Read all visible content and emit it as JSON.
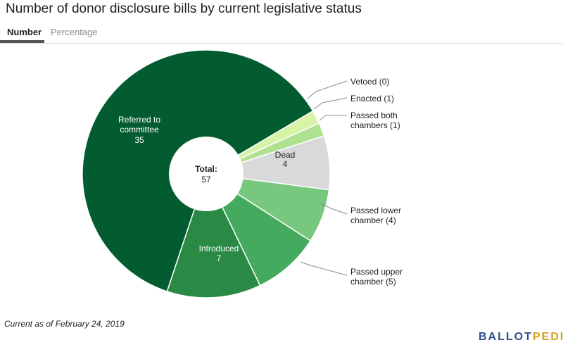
{
  "title": "Number of donor disclosure bills by current legislative status",
  "tabs": [
    {
      "label": "Number",
      "active": true
    },
    {
      "label": "Percentage",
      "active": false
    }
  ],
  "footnote": "Current as of February 24, 2019",
  "logo": {
    "part1": "BALLOT",
    "part2": "PEDIA"
  },
  "chart_data": {
    "type": "pie",
    "variant": "donut",
    "center_label": "Total:",
    "center_value": "57",
    "total": 57,
    "slices": [
      {
        "label": "Vetoed (0)",
        "name": "Vetoed",
        "value": 0,
        "color": "#d8f2a6",
        "label_position": "outside"
      },
      {
        "label": "Enacted (1)",
        "name": "Enacted",
        "value": 1,
        "color": "#d8f2a6",
        "label_position": "outside"
      },
      {
        "label": "Passed both chambers (1)",
        "name": "Passed both chambers",
        "value": 1,
        "color": "#aee190",
        "label_position": "outside"
      },
      {
        "label": "Dead",
        "name": "Dead",
        "value": 4,
        "color": "#d9d9d9",
        "label_position": "inside"
      },
      {
        "label": "Passed lower chamber (4)",
        "name": "Passed lower chamber",
        "value": 4,
        "color": "#78c77e",
        "label_position": "outside"
      },
      {
        "label": "Passed upper chamber (5)",
        "name": "Passed upper chamber",
        "value": 5,
        "color": "#44aa5e",
        "label_position": "outside"
      },
      {
        "label": "Introduced",
        "name": "Introduced",
        "value": 7,
        "color": "#2a8a45",
        "label_position": "inside"
      },
      {
        "label": "Referred to committee",
        "name": "Referred to committee",
        "value": 35,
        "color": "#035c2f",
        "label_position": "inside"
      }
    ]
  }
}
